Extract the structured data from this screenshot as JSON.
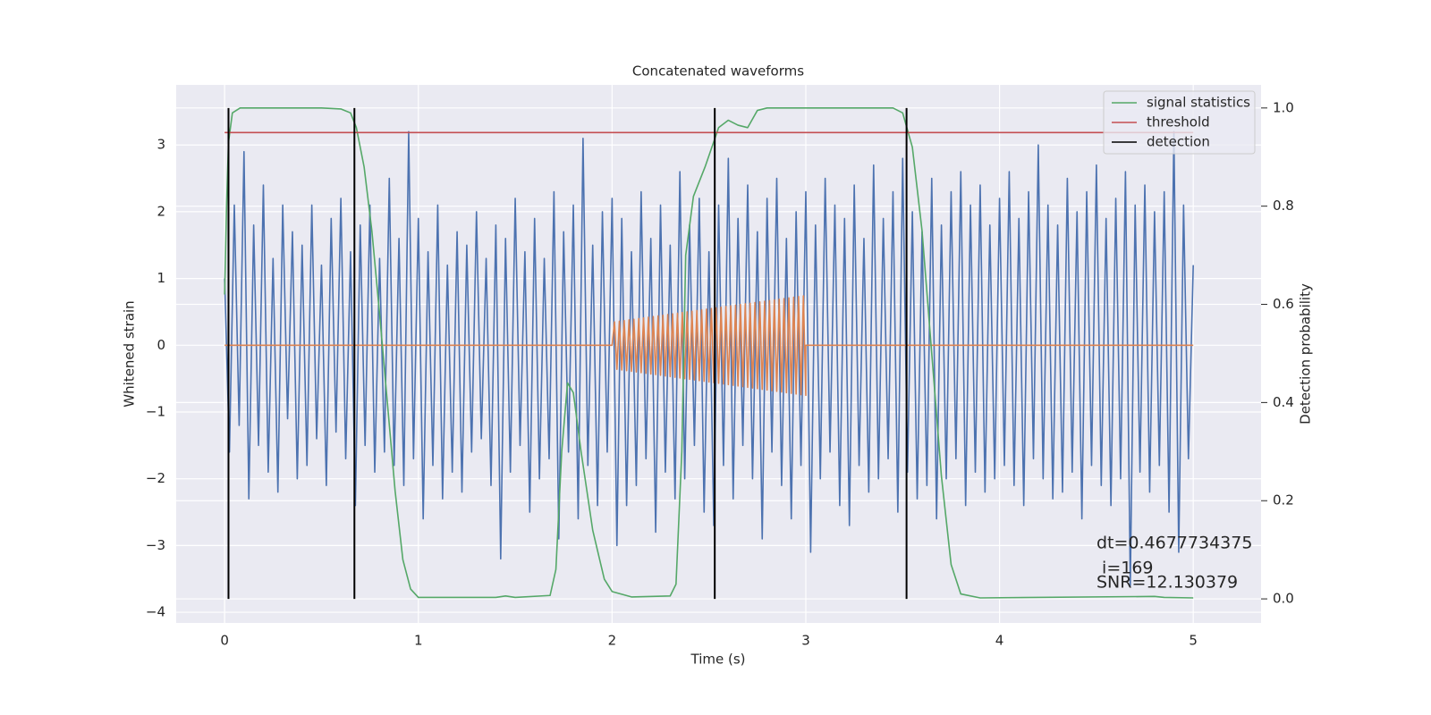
{
  "chart_data": {
    "type": "line",
    "title": "Concatenated waveforms",
    "xlabel": "Time (s)",
    "ylabel": "Whitened strain",
    "y2label": "Detection probability",
    "xlim": [
      -0.25,
      5.35
    ],
    "ylim": [
      -4.16,
      3.9
    ],
    "y2lim": [
      -0.049,
      1.047
    ],
    "xticks": [
      0,
      1,
      2,
      3,
      4,
      5
    ],
    "yticks": [
      {
        "value": -4,
        "label": "−4"
      },
      {
        "value": -3,
        "label": "−3"
      },
      {
        "value": -2,
        "label": "−2"
      },
      {
        "value": -1,
        "label": "−1"
      },
      0,
      1,
      2,
      3
    ],
    "y2ticks": [
      {
        "value": 0,
        "label": "0.0"
      },
      {
        "value": 0.2,
        "label": "0.2"
      },
      {
        "value": 0.4,
        "label": "0.4"
      },
      {
        "value": 0.6,
        "label": "0.6"
      },
      {
        "value": 0.8,
        "label": "0.8"
      },
      {
        "value": 1,
        "label": "1.0"
      }
    ],
    "grid": true,
    "legend": "upper right",
    "annotations": [
      "dt=0.4677734375",
      " i=169",
      "SNR=12.130379"
    ],
    "series": [
      {
        "color": "#4c72b0",
        "x": [
          0,
          0.025,
          0.05,
          0.075,
          0.1,
          0.125,
          0.15,
          0.175,
          0.2,
          0.225,
          0.25,
          0.275,
          0.3,
          0.325,
          0.35,
          0.375,
          0.4,
          0.425,
          0.45,
          0.475,
          0.5,
          0.525,
          0.55,
          0.575,
          0.6,
          0.625,
          0.65,
          0.675,
          0.7,
          0.725,
          0.75,
          0.775,
          0.8,
          0.825,
          0.85,
          0.875,
          0.9,
          0.925,
          0.95,
          0.975,
          1,
          1.025,
          1.05,
          1.075,
          1.1,
          1.125,
          1.15,
          1.175,
          1.2,
          1.225,
          1.25,
          1.275,
          1.3,
          1.325,
          1.35,
          1.375,
          1.4,
          1.425,
          1.45,
          1.475,
          1.5,
          1.525,
          1.55,
          1.575,
          1.6,
          1.625,
          1.65,
          1.675,
          1.7,
          1.725,
          1.75,
          1.775,
          1.8,
          1.825,
          1.85,
          1.875,
          1.9,
          1.925,
          1.95,
          1.975,
          2,
          2.025,
          2.05,
          2.075,
          2.1,
          2.125,
          2.15,
          2.175,
          2.2,
          2.225,
          2.25,
          2.275,
          2.3,
          2.325,
          2.35,
          2.375,
          2.4,
          2.425,
          2.45,
          2.475,
          2.5,
          2.525,
          2.55,
          2.575,
          2.6,
          2.625,
          2.65,
          2.675,
          2.7,
          2.725,
          2.75,
          2.775,
          2.8,
          2.825,
          2.85,
          2.875,
          2.9,
          2.925,
          2.95,
          2.975,
          3,
          3.025,
          3.05,
          3.075,
          3.1,
          3.125,
          3.15,
          3.175,
          3.2,
          3.225,
          3.25,
          3.275,
          3.3,
          3.325,
          3.35,
          3.375,
          3.4,
          3.425,
          3.45,
          3.475,
          3.5,
          3.525,
          3.55,
          3.575,
          3.6,
          3.625,
          3.65,
          3.675,
          3.7,
          3.725,
          3.75,
          3.775,
          3.8,
          3.825,
          3.85,
          3.875,
          3.9,
          3.925,
          3.95,
          3.975,
          4,
          4.025,
          4.05,
          4.075,
          4.1,
          4.125,
          4.15,
          4.175,
          4.2,
          4.225,
          4.25,
          4.275,
          4.3,
          4.325,
          4.35,
          4.375,
          4.4,
          4.425,
          4.45,
          4.475,
          4.5,
          4.525,
          4.55,
          4.575,
          4.6,
          4.625,
          4.65,
          4.675,
          4.7,
          4.725,
          4.75,
          4.775,
          4.8,
          4.825,
          4.85,
          4.875,
          4.9,
          4.925,
          4.95,
          4.975,
          5
        ],
        "values": [
          1.0,
          -1.6,
          2.1,
          -1.2,
          2.9,
          -2.3,
          1.8,
          -1.5,
          2.4,
          -1.9,
          1.3,
          -2.2,
          2.1,
          -1.1,
          1.7,
          -2.0,
          1.5,
          -1.8,
          2.1,
          -1.4,
          1.2,
          -2.1,
          1.9,
          -1.3,
          2.2,
          -1.7,
          1.4,
          -2.4,
          1.8,
          -1.5,
          2.1,
          -1.9,
          1.3,
          -1.6,
          2.5,
          -1.8,
          1.6,
          -2.1,
          3.2,
          -1.7,
          1.9,
          -2.6,
          1.4,
          -1.8,
          2.1,
          -2.3,
          1.2,
          -1.9,
          1.7,
          -2.2,
          1.5,
          -1.6,
          2.0,
          -1.4,
          1.3,
          -2.1,
          1.8,
          -3.2,
          1.6,
          -1.9,
          2.2,
          -1.5,
          1.4,
          -2.5,
          1.9,
          -2.0,
          1.3,
          -1.7,
          2.3,
          -2.9,
          1.7,
          -1.6,
          2.1,
          -2.6,
          3.1,
          -1.8,
          1.5,
          -2.4,
          2.0,
          -1.6,
          2.2,
          -3.0,
          1.9,
          -2.4,
          1.4,
          -2.1,
          2.3,
          -1.7,
          1.6,
          -2.8,
          2.1,
          -1.9,
          1.5,
          -2.3,
          2.6,
          -2.0,
          1.8,
          -1.5,
          2.2,
          -2.5,
          1.4,
          -2.7,
          2.1,
          -1.8,
          2.8,
          -2.3,
          1.9,
          -1.5,
          2.4,
          -2.0,
          1.7,
          -2.9,
          2.2,
          -1.6,
          2.5,
          -2.1,
          1.6,
          -2.6,
          2.0,
          -1.8,
          2.3,
          -3.1,
          1.8,
          -2.0,
          2.5,
          -1.6,
          2.1,
          -2.4,
          1.9,
          -2.7,
          2.4,
          -1.8,
          1.6,
          -2.2,
          2.7,
          -2.0,
          1.9,
          -1.7,
          2.3,
          -2.5,
          2.8,
          -1.9,
          2.0,
          -2.3,
          1.7,
          -2.1,
          2.5,
          -2.6,
          1.8,
          -2.0,
          2.3,
          -1.7,
          2.6,
          -2.4,
          2.1,
          -1.9,
          2.4,
          -2.2,
          1.8,
          -2.0,
          2.2,
          -1.8,
          2.6,
          -2.1,
          1.9,
          -2.4,
          2.3,
          -1.7,
          3.0,
          -2.0,
          2.1,
          -2.3,
          1.8,
          -2.2,
          2.5,
          -1.9,
          2.0,
          -2.6,
          2.3,
          -1.8,
          2.7,
          -2.1,
          1.9,
          -2.4,
          2.2,
          -2.0,
          2.6,
          -3.6,
          2.1,
          -1.9,
          2.4,
          -2.2,
          2.0,
          -1.8,
          2.3,
          -2.5,
          3.2,
          -3.1,
          2.1,
          -1.7,
          1.2
        ]
      },
      {
        "color": "#dd8452",
        "x": [
          0,
          2,
          2.0125,
          2.025,
          2.0375,
          2.05,
          2.0625,
          2.075,
          2.0875,
          2.1,
          2.1125,
          2.125,
          2.1375,
          2.15,
          2.1625,
          2.175,
          2.1875,
          2.2,
          2.2125,
          2.225,
          2.2375,
          2.25,
          2.2625,
          2.275,
          2.2875,
          2.3,
          2.3125,
          2.325,
          2.3375,
          2.35,
          2.3625,
          2.375,
          2.3875,
          2.4,
          2.4125,
          2.425,
          2.4375,
          2.45,
          2.4625,
          2.475,
          2.4875,
          2.5,
          2.5125,
          2.525,
          2.5375,
          2.55,
          2.5625,
          2.575,
          2.5875,
          2.6,
          2.6125,
          2.625,
          2.6375,
          2.65,
          2.6625,
          2.675,
          2.6875,
          2.7,
          2.7125,
          2.725,
          2.7375,
          2.75,
          2.7625,
          2.775,
          2.7875,
          2.8,
          2.8125,
          2.825,
          2.8375,
          2.85,
          2.8625,
          2.875,
          2.8875,
          2.9,
          2.9125,
          2.925,
          2.9375,
          2.95,
          2.9625,
          2.975,
          2.9875,
          3.0,
          3.0,
          5
        ],
        "values": [
          0,
          0,
          0.35,
          -0.36,
          0.36,
          -0.37,
          0.37,
          -0.38,
          0.38,
          -0.39,
          0.39,
          -0.4,
          0.4,
          -0.41,
          0.41,
          -0.42,
          0.42,
          -0.43,
          0.43,
          -0.44,
          0.44,
          -0.45,
          0.45,
          -0.46,
          0.46,
          -0.47,
          0.47,
          -0.48,
          0.48,
          -0.49,
          0.49,
          -0.5,
          0.5,
          -0.51,
          0.51,
          -0.52,
          0.52,
          -0.53,
          0.53,
          -0.54,
          0.54,
          -0.55,
          0.55,
          -0.56,
          0.56,
          -0.57,
          0.57,
          -0.58,
          0.58,
          -0.59,
          0.59,
          -0.6,
          0.6,
          -0.61,
          0.61,
          -0.62,
          0.62,
          -0.63,
          0.63,
          -0.64,
          0.64,
          -0.65,
          0.65,
          -0.66,
          0.66,
          -0.67,
          0.67,
          -0.68,
          0.68,
          -0.69,
          0.69,
          -0.7,
          0.7,
          -0.71,
          0.71,
          -0.72,
          0.72,
          -0.73,
          0.73,
          -0.74,
          0.74,
          -0.75,
          0,
          0
        ]
      },
      {
        "name": "signal statistics",
        "color": "#55a868",
        "axis": "y2",
        "x": [
          0,
          0.01,
          0.02,
          0.04,
          0.08,
          0.5,
          0.6,
          0.65,
          0.68,
          0.72,
          0.76,
          0.8,
          0.84,
          0.88,
          0.92,
          0.96,
          1.0,
          1.4,
          1.45,
          1.5,
          1.68,
          1.71,
          1.74,
          1.77,
          1.8,
          1.84,
          1.9,
          1.96,
          2.0,
          2.1,
          2.3,
          2.33,
          2.36,
          2.38,
          2.42,
          2.48,
          2.55,
          2.6,
          2.65,
          2.7,
          2.75,
          2.8,
          3.45,
          3.5,
          3.55,
          3.6,
          3.65,
          3.7,
          3.75,
          3.8,
          3.9,
          4.8,
          4.85,
          5.0
        ],
        "values": [
          0.62,
          0.8,
          0.93,
          0.99,
          1.0,
          1.0,
          0.998,
          0.99,
          0.96,
          0.88,
          0.75,
          0.58,
          0.4,
          0.22,
          0.08,
          0.02,
          0.003,
          0.003,
          0.006,
          0.003,
          0.007,
          0.06,
          0.3,
          0.44,
          0.42,
          0.3,
          0.14,
          0.04,
          0.015,
          0.004,
          0.006,
          0.03,
          0.3,
          0.7,
          0.82,
          0.88,
          0.96,
          0.975,
          0.965,
          0.96,
          0.995,
          1.0,
          1.0,
          0.99,
          0.92,
          0.75,
          0.5,
          0.25,
          0.07,
          0.01,
          0.002,
          0.005,
          0.003,
          0.002
        ]
      },
      {
        "name": "threshold",
        "color": "#c44e52",
        "axis": "y2",
        "x": [
          0,
          5
        ],
        "values": [
          0.95,
          0.95
        ]
      },
      {
        "name": "detection",
        "color": "#000000",
        "axis": "y2",
        "x": [
          0.02,
          0.67,
          2.53,
          3.52
        ]
      }
    ]
  }
}
